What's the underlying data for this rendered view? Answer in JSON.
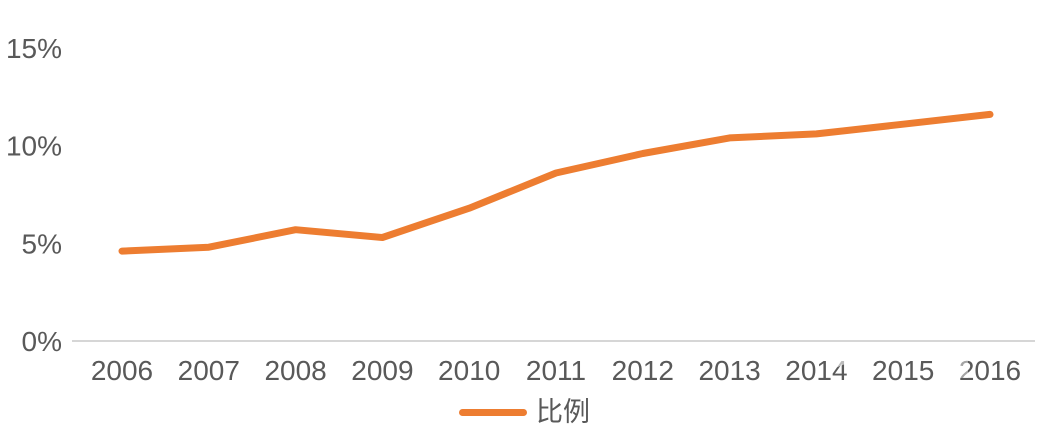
{
  "chart_data": {
    "type": "line",
    "title": "",
    "xlabel": "",
    "ylabel": "",
    "categories": [
      "2006",
      "2007",
      "2008",
      "2009",
      "2010",
      "2011",
      "2012",
      "2013",
      "2014",
      "2015",
      "2016"
    ],
    "series": [
      {
        "name": "比例",
        "color": "#ED7D31",
        "values": [
          4.6,
          4.8,
          5.7,
          5.3,
          6.8,
          8.6,
          9.6,
          10.4,
          10.6,
          11.1,
          11.6
        ]
      }
    ],
    "ylim": [
      0,
      15
    ],
    "y_tick_values": [
      0,
      5,
      10,
      15
    ],
    "y_tick_labels": [
      "0%",
      "5%",
      "10%",
      "15%"
    ],
    "grid": false,
    "legend_position": "bottom"
  },
  "colors": {
    "line": "#ED7D31",
    "text": "#595959",
    "axis": "#D6D6D6",
    "background": "#FFFFFF"
  }
}
